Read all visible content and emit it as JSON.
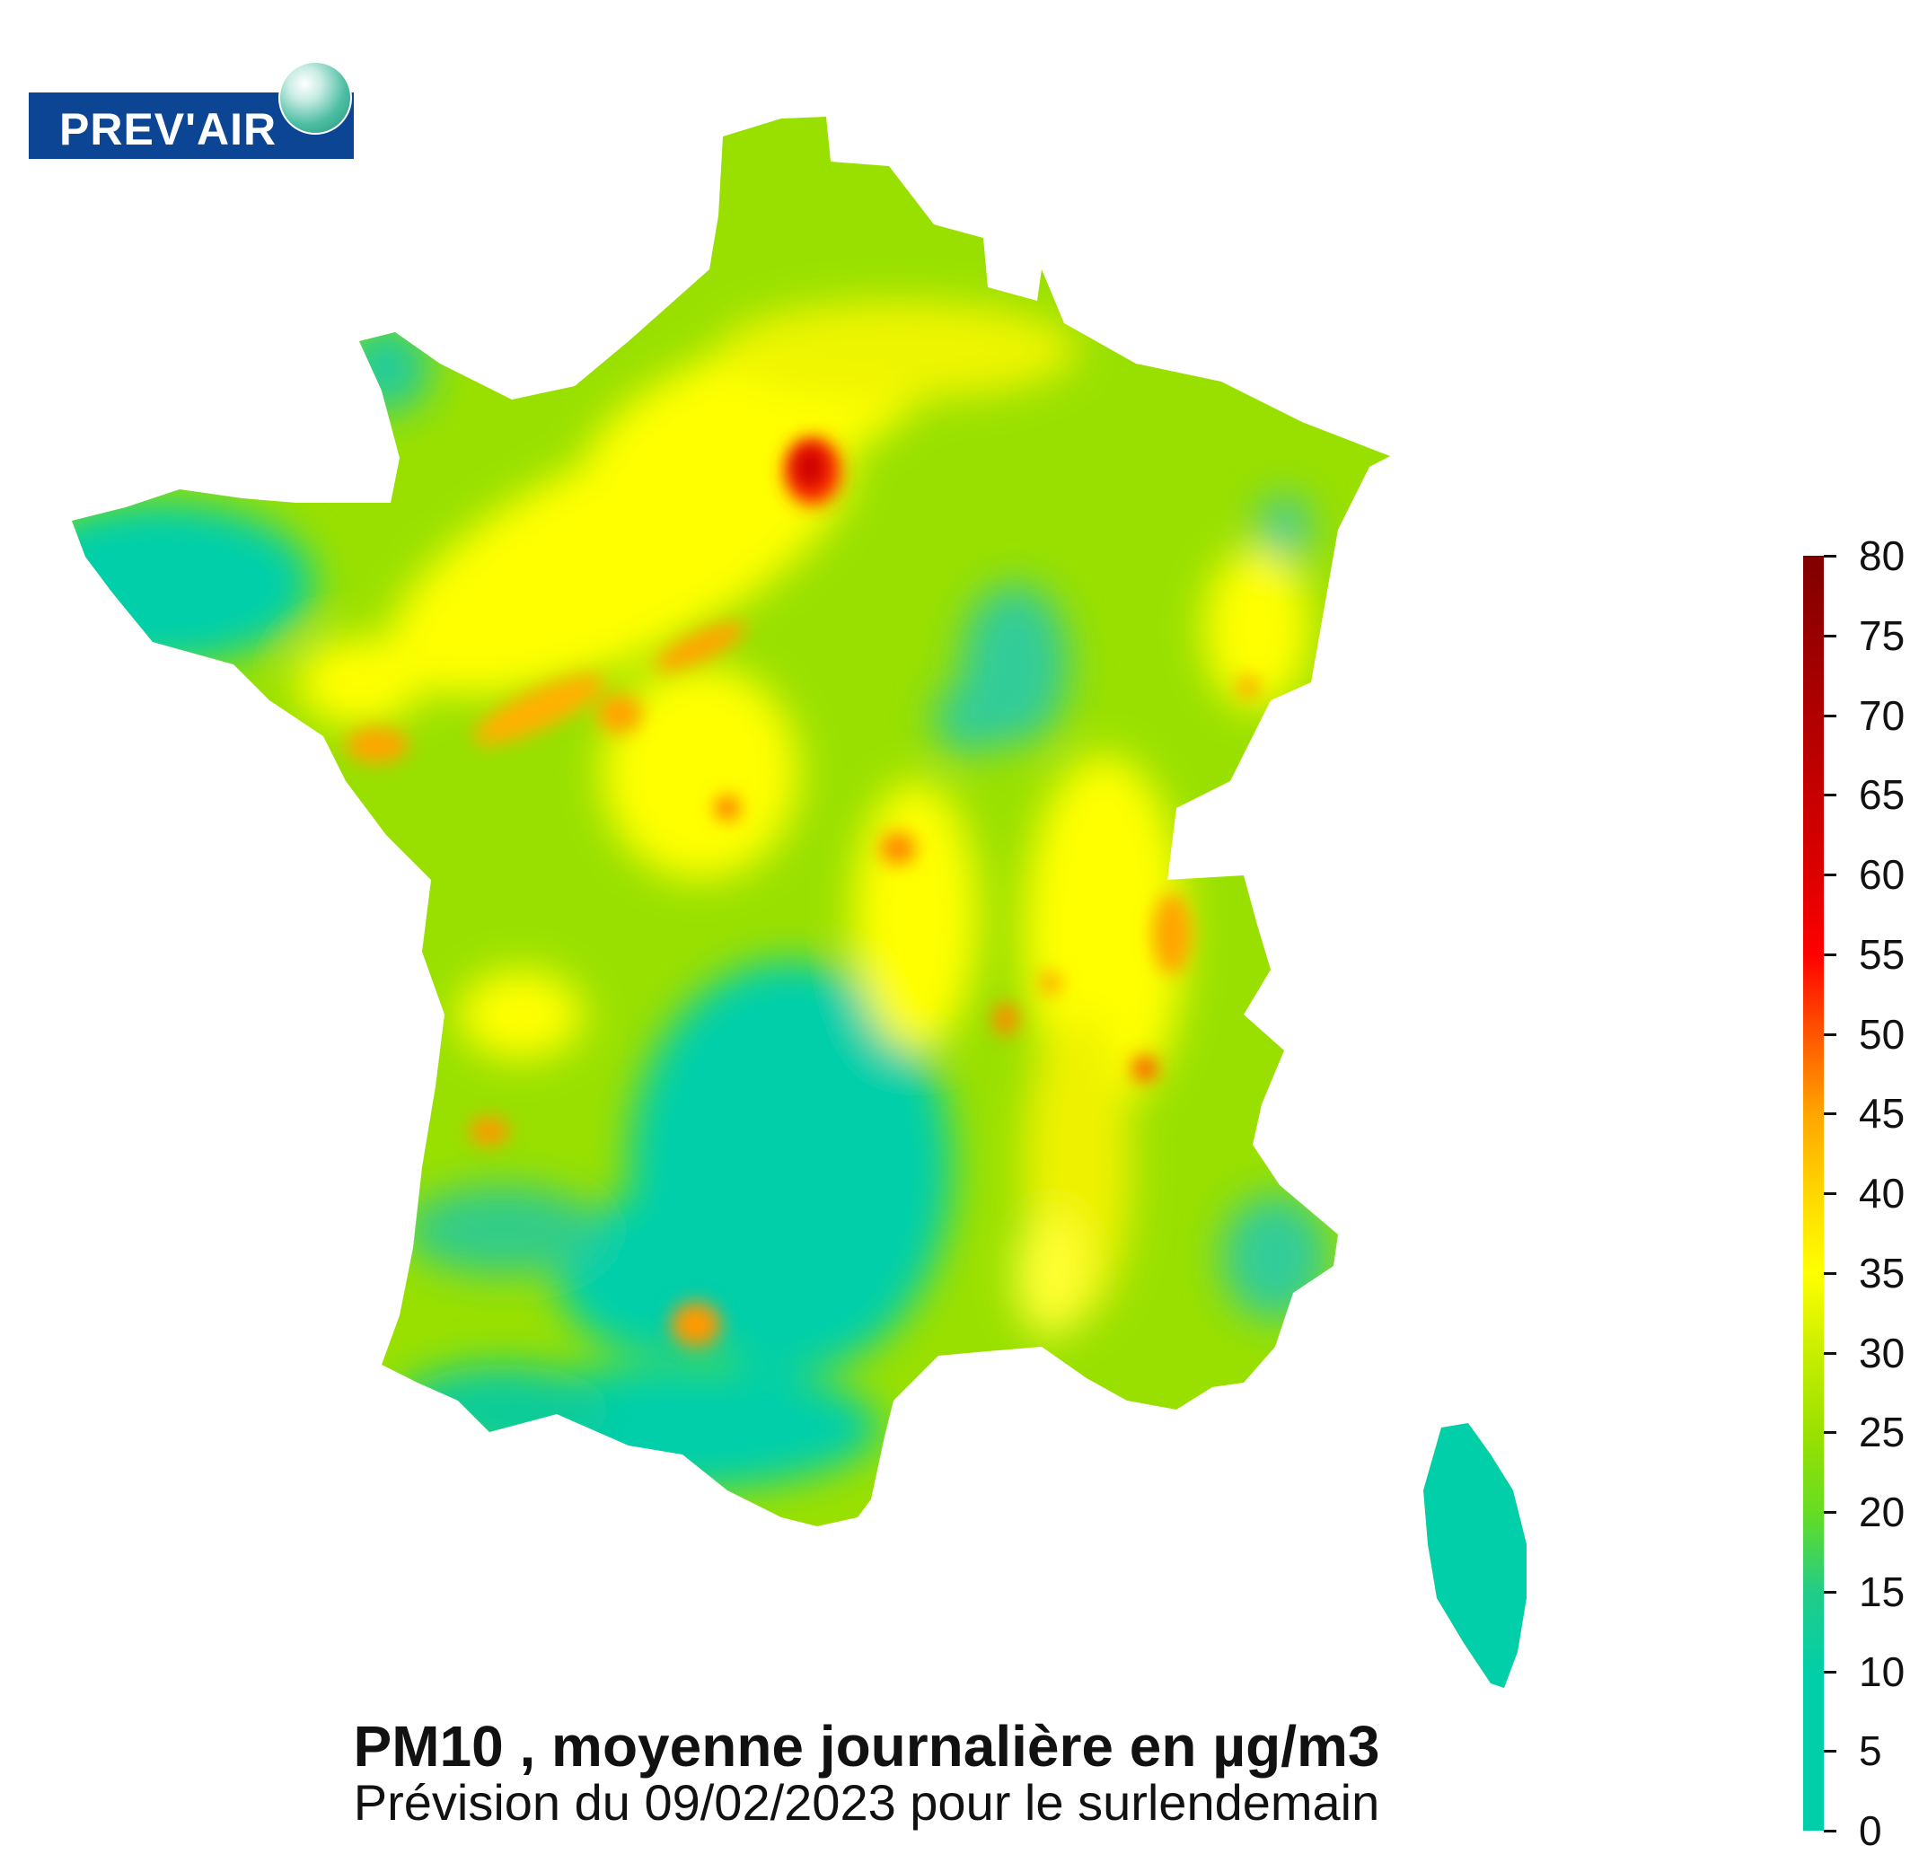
{
  "logo": {
    "text": "PREV'AIR"
  },
  "title": "PM10 , moyenne journalière en µg/m3",
  "subtitle": "Prévision du 09/02/2023 pour le surlendemain",
  "legend": {
    "ticks": [
      "0",
      "5",
      "10",
      "15",
      "20",
      "25",
      "30",
      "35",
      "40",
      "45",
      "50",
      "55",
      "60",
      "65",
      "70",
      "75",
      "80"
    ],
    "min": 0,
    "max": 80,
    "colors": {
      "low": "#00cfaa",
      "mid_low": "#99e000",
      "mid": "#ffff00",
      "mid_high": "#ffa500",
      "high": "#ff0000",
      "max": "#800000"
    }
  }
}
